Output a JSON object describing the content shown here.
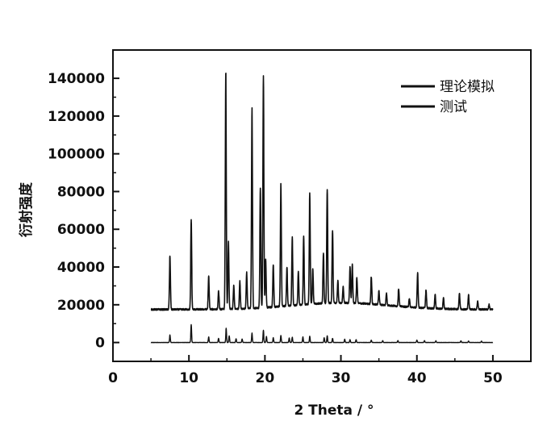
{
  "chart_data": {
    "type": "line",
    "title": "",
    "xlabel": "2 Theta / °",
    "ylabel": "衍射强度",
    "xlim": [
      0,
      55
    ],
    "ylim": [
      -10000,
      155000
    ],
    "xticks": [
      0,
      10,
      20,
      30,
      40,
      50
    ],
    "yticks": [
      0,
      20000,
      40000,
      60000,
      80000,
      100000,
      120000,
      140000
    ],
    "legend_position": "top-right",
    "grid": false,
    "series": [
      {
        "name": "理论模拟",
        "color": "#111111",
        "baseline": 0,
        "x_range": [
          5,
          50
        ],
        "peaks": [
          [
            7.5,
            4000
          ],
          [
            10.3,
            9500
          ],
          [
            12.6,
            3000
          ],
          [
            13.9,
            2200
          ],
          [
            14.9,
            7500
          ],
          [
            15.3,
            3500
          ],
          [
            16.2,
            2000
          ],
          [
            17.0,
            1800
          ],
          [
            18.3,
            5000
          ],
          [
            19.8,
            6500
          ],
          [
            20.2,
            3200
          ],
          [
            21.1,
            2500
          ],
          [
            22.1,
            3800
          ],
          [
            23.2,
            2400
          ],
          [
            23.6,
            2800
          ],
          [
            25.0,
            3000
          ],
          [
            25.9,
            3300
          ],
          [
            27.8,
            2500
          ],
          [
            28.2,
            3500
          ],
          [
            28.9,
            2200
          ],
          [
            30.5,
            1800
          ],
          [
            31.2,
            1500
          ],
          [
            32.0,
            1500
          ],
          [
            34.0,
            1200
          ],
          [
            35.5,
            1000
          ],
          [
            37.5,
            1000
          ],
          [
            40.0,
            1300
          ],
          [
            41.0,
            1000
          ],
          [
            42.5,
            900
          ],
          [
            45.8,
            900
          ],
          [
            46.8,
            800
          ],
          [
            48.5,
            700
          ]
        ]
      },
      {
        "name": "测试",
        "color": "#111111",
        "baseline": 17500,
        "x_range": [
          5,
          50
        ],
        "peaks": [
          [
            7.5,
            46000
          ],
          [
            10.3,
            65000
          ],
          [
            12.6,
            35000
          ],
          [
            13.9,
            27000
          ],
          [
            14.85,
            144000
          ],
          [
            15.2,
            53000
          ],
          [
            15.9,
            30000
          ],
          [
            16.7,
            32000
          ],
          [
            17.6,
            37000
          ],
          [
            18.3,
            124000
          ],
          [
            19.4,
            81000
          ],
          [
            19.8,
            140000
          ],
          [
            20.1,
            43000
          ],
          [
            21.1,
            40000
          ],
          [
            22.1,
            83000
          ],
          [
            22.9,
            38000
          ],
          [
            23.6,
            54000
          ],
          [
            24.4,
            35000
          ],
          [
            25.1,
            54000
          ],
          [
            25.9,
            76000
          ],
          [
            26.3,
            36000
          ],
          [
            27.7,
            44000
          ],
          [
            28.2,
            78000
          ],
          [
            28.9,
            56000
          ],
          [
            29.6,
            29000
          ],
          [
            30.3,
            26000
          ],
          [
            31.2,
            37000
          ],
          [
            31.5,
            38000
          ],
          [
            32.1,
            31000
          ],
          [
            34.0,
            32000
          ],
          [
            35.0,
            25000
          ],
          [
            36.0,
            24000
          ],
          [
            37.6,
            27000
          ],
          [
            39.0,
            22000
          ],
          [
            40.1,
            36000
          ],
          [
            41.2,
            27000
          ],
          [
            42.4,
            25000
          ],
          [
            43.5,
            23000
          ],
          [
            45.6,
            26000
          ],
          [
            46.8,
            25000
          ],
          [
            48.0,
            22000
          ],
          [
            49.5,
            20000
          ]
        ]
      }
    ]
  }
}
